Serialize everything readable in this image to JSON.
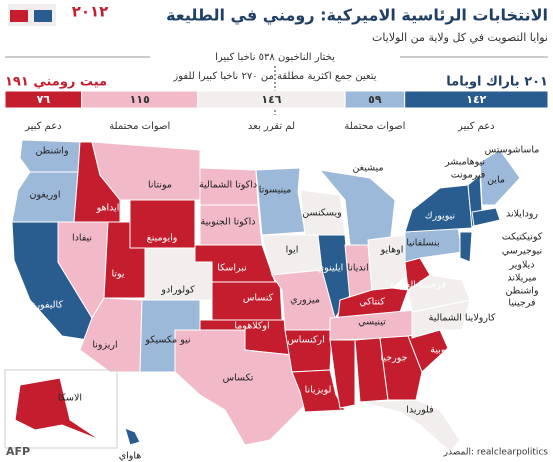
{
  "header": {
    "year": "٢٠١٢",
    "title": "الانتخابات الرئاسية الاميركية: رومني في الطليعة",
    "subtitle": "نوايا التصويت في كل ولاية من الولايات"
  },
  "tally": {
    "total_note": "يختار الناخبون ٥٣٨ ناخبا كبيرا",
    "majority_note": "يتعين جمع اكثرية مطلقة من ٢٧٠ ناخبا كبيرا للفوز",
    "obama": "٢٠١ باراك اوباما",
    "romney": "ميت رومني ١٩١",
    "segments": [
      {
        "value": 76,
        "label": "٧٦",
        "caption": "دعم كبير",
        "color": "#c41e2e"
      },
      {
        "value": 115,
        "label": "١١٥",
        "caption": "اصوات محتملة",
        "color": "#f2b9c8"
      },
      {
        "value": 146,
        "label": "١٤٦",
        "caption": "لم تقرر بعد",
        "color": "#f3eeee"
      },
      {
        "value": 59,
        "label": "٥٩",
        "caption": "اصوات محتملة",
        "color": "#9cb9d9"
      },
      {
        "value": 142,
        "label": "١٤٢",
        "caption": "دعم كبير",
        "color": "#2a5d8f"
      }
    ]
  },
  "map": {
    "states": [
      "واشنطن",
      "اوريغون",
      "كاليفورنيا",
      "نيفادا",
      "ايداهو",
      "مونتانا",
      "وايومينغ",
      "يوتا",
      "كولورادو",
      "اريزونا",
      "نيو مكسيكو",
      "داكوتا الشمالية",
      "داكوتا الجنوبية",
      "نبراسكا",
      "كنساس",
      "اوكلاهوما",
      "تكساس",
      "مينيسوتا",
      "ايوا",
      "ميزوري",
      "اركنساس",
      "لويزيانا",
      "ويسكنسن",
      "ايلينوي",
      "ميشيغن",
      "انديانا",
      "اوهايو",
      "كنتاكي",
      "تينيسي",
      "ميسيسيبي",
      "الاباما",
      "جورجيا",
      "فلوريدا",
      "كارولاينا الجنوبية",
      "كارولاينا الشمالية",
      "فرجينيا الغربية",
      "بنسلفانيا",
      "نيويورك",
      "ماين",
      "ماساشوستس",
      "نيوهامبشر",
      "فيرمونت",
      "رودايلاند",
      "كونيكتيكت",
      "نيوجيرسي",
      "ديلاوير",
      "ميريلاند",
      "واشنطن",
      "فرجينيا",
      "الاسكا",
      "هاواي"
    ]
  },
  "footer": {
    "source": "المصدر: realclearpolitics",
    "agency": "AFP"
  }
}
